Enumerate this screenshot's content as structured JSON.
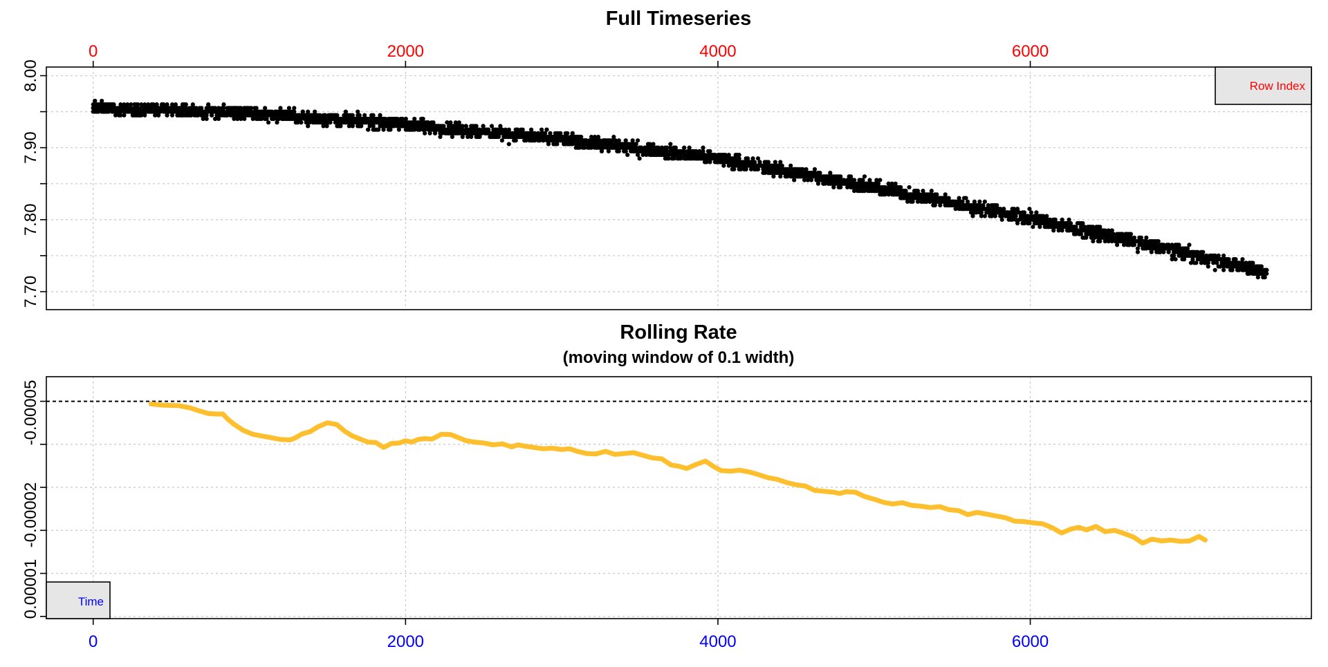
{
  "chart_data": [
    {
      "type": "scatter",
      "title": "Full Timeseries",
      "top_axis_ticks": [
        "0",
        "2000",
        "4000",
        "6000"
      ],
      "top_axis_color": "#ff0000",
      "y_tick_labels": [
        "7.70",
        "7.80",
        "7.90",
        "8.00"
      ],
      "xlim": [
        -300,
        7800
      ],
      "ylim": [
        7.675,
        8.012
      ],
      "legend_text": "Row Index",
      "legend_text_color": "#ff0000",
      "legend_position": "top-right",
      "grid": true,
      "point_color": "#000000",
      "trend": {
        "x": [
          0,
          1000,
          2000,
          3000,
          4000,
          5000,
          6000,
          7500
        ],
        "y": [
          7.955,
          7.948,
          7.932,
          7.912,
          7.885,
          7.845,
          7.802,
          7.728
        ]
      },
      "noise_amplitude": 0.013,
      "resolution": 0.005,
      "x_range": [
        0,
        7520
      ]
    },
    {
      "type": "line",
      "title": "Rolling Rate",
      "subtitle": "(moving window of 0.1 width)",
      "y_tick_labels": [
        "0.00001",
        "-0.00002",
        "-0.00005"
      ],
      "x_tick_labels": [
        "0",
        "2000",
        "4000",
        "6000"
      ],
      "x_tick_color": "#0000ff",
      "xlim": [
        -300,
        7800
      ],
      "ylim": [
        -6.13e-05,
        -6.2e-06
      ],
      "reference_line": -1.18e-05,
      "legend_text": "Time",
      "legend_text_color": "#0000ff",
      "legend_position": "bottom-left",
      "grid": true,
      "series": [
        {
          "color": "#fdbf2d",
          "x": [
            370,
            450,
            550,
            620,
            680,
            740,
            790,
            830,
            860,
            900,
            960,
            1020,
            1080,
            1140,
            1200,
            1260,
            1290,
            1340,
            1390,
            1440,
            1500,
            1560,
            1610,
            1660,
            1710,
            1760,
            1810,
            1860,
            1910,
            1960,
            2000,
            2040,
            2080,
            2120,
            2170,
            2230,
            2290,
            2340,
            2390,
            2440,
            2500,
            2560,
            2620,
            2680,
            2720,
            2760,
            2820,
            2880,
            2940,
            3000,
            3050,
            3100,
            3160,
            3220,
            3280,
            3340,
            3400,
            3460,
            3520,
            3580,
            3640,
            3700,
            3750,
            3800,
            3860,
            3920,
            3970,
            4020,
            4080,
            4140,
            4200,
            4260,
            4320,
            4380,
            4440,
            4500,
            4560,
            4620,
            4680,
            4740,
            4780,
            4820,
            4880,
            4940,
            5000,
            5060,
            5120,
            5180,
            5240,
            5300,
            5360,
            5420,
            5480,
            5540,
            5600,
            5660,
            5720,
            5780,
            5840,
            5900,
            5960,
            6020,
            6080,
            6140,
            6200,
            6260,
            6310,
            6360,
            6420,
            6480,
            6540,
            6600,
            6660,
            6720,
            6780,
            6840,
            6900,
            6960,
            7020,
            7080,
            7120
          ],
          "y": [
            -1.24e-05,
            -1.27e-05,
            -1.28e-05,
            -1.33e-05,
            -1.4e-05,
            -1.46e-05,
            -1.47e-05,
            -1.47e-05,
            -1.58e-05,
            -1.7e-05,
            -1.84e-05,
            -1.93e-05,
            -1.97e-05,
            -2.01e-05,
            -2.05e-05,
            -2.06e-05,
            -2.02e-05,
            -1.92e-05,
            -1.87e-05,
            -1.76e-05,
            -1.67e-05,
            -1.71e-05,
            -1.86e-05,
            -1.97e-05,
            -2.04e-05,
            -2.11e-05,
            -2.12e-05,
            -2.23e-05,
            -2.14e-05,
            -2.13e-05,
            -2.08e-05,
            -2.11e-05,
            -2.05e-05,
            -2.03e-05,
            -2.04e-05,
            -1.93e-05,
            -1.94e-05,
            -2.01e-05,
            -2.08e-05,
            -2.11e-05,
            -2.13e-05,
            -2.17e-05,
            -2.15e-05,
            -2.22e-05,
            -2.17e-05,
            -2.2e-05,
            -2.23e-05,
            -2.26e-05,
            -2.25e-05,
            -2.28e-05,
            -2.26e-05,
            -2.32e-05,
            -2.37e-05,
            -2.38e-05,
            -2.32e-05,
            -2.39e-05,
            -2.37e-05,
            -2.35e-05,
            -2.41e-05,
            -2.47e-05,
            -2.49e-05,
            -2.63e-05,
            -2.66e-05,
            -2.71e-05,
            -2.62e-05,
            -2.54e-05,
            -2.66e-05,
            -2.76e-05,
            -2.77e-05,
            -2.75e-05,
            -2.79e-05,
            -2.85e-05,
            -2.92e-05,
            -2.96e-05,
            -3.03e-05,
            -3.08e-05,
            -3.11e-05,
            -3.21e-05,
            -3.23e-05,
            -3.25e-05,
            -3.28e-05,
            -3.24e-05,
            -3.25e-05,
            -3.35e-05,
            -3.41e-05,
            -3.48e-05,
            -3.52e-05,
            -3.49e-05,
            -3.55e-05,
            -3.57e-05,
            -3.6e-05,
            -3.58e-05,
            -3.65e-05,
            -3.67e-05,
            -3.76e-05,
            -3.71e-05,
            -3.75e-05,
            -3.79e-05,
            -3.83e-05,
            -3.91e-05,
            -3.92e-05,
            -3.95e-05,
            -3.97e-05,
            -4.06e-05,
            -4.18e-05,
            -4.09e-05,
            -4.05e-05,
            -4.11e-05,
            -4.03e-05,
            -4.15e-05,
            -4.12e-05,
            -4.19e-05,
            -4.27e-05,
            -4.41e-05,
            -4.32e-05,
            -4.36e-05,
            -4.34e-05,
            -4.37e-05,
            -4.36e-05,
            -4.26e-05,
            -4.34e-05
          ]
        }
      ]
    }
  ]
}
